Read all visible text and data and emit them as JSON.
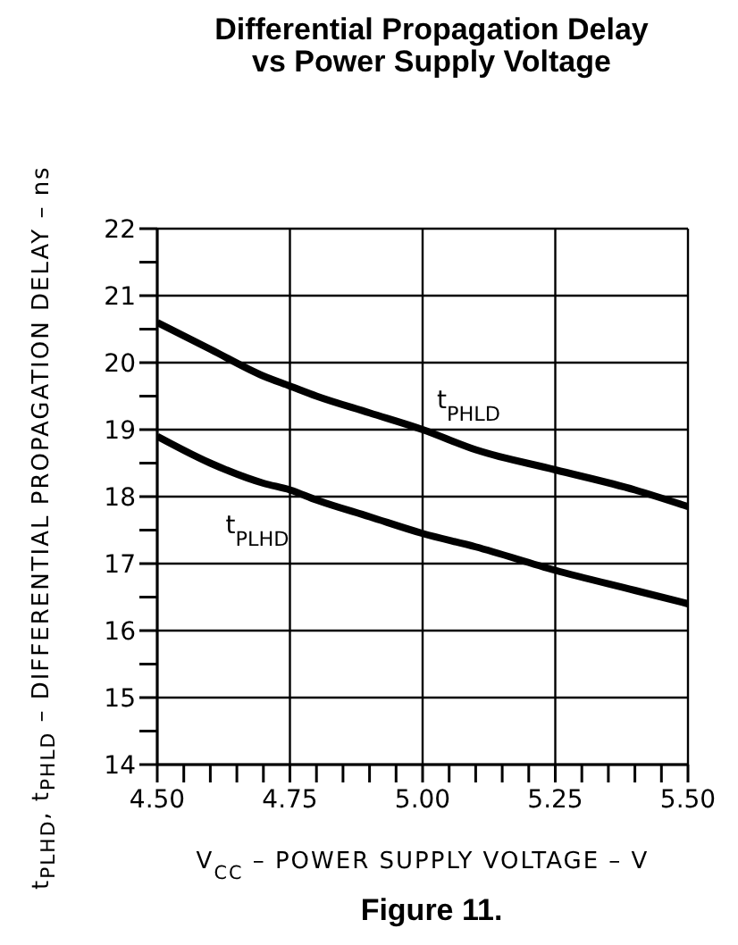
{
  "chart_data": {
    "type": "line",
    "title": "Differential Propagation Delay\nvs Power Supply Voltage",
    "xlabel": "V$_{CC}$ – POWER SUPPLY VOLTAGE – V",
    "ylabel": "t$_{PLHD}$, t$_{PHLD}$ – DIFFERENTIAL PROPAGATION DELAY – ns",
    "annotations": [
      "Figure 11."
    ],
    "x": [
      4.5,
      4.6,
      4.7,
      4.75,
      4.8,
      4.9,
      5.0,
      5.1,
      5.25,
      5.4,
      5.5
    ],
    "series": [
      {
        "name": "t$_{PHLD}$",
        "color": "#000000",
        "values": [
          20.6,
          20.2,
          19.8,
          19.65,
          19.5,
          19.25,
          19.0,
          18.7,
          18.4,
          18.1,
          17.85
        ]
      },
      {
        "name": "t$_{PLHD}$",
        "color": "#000000",
        "values": [
          18.9,
          18.5,
          18.2,
          18.1,
          17.95,
          17.7,
          17.45,
          17.25,
          16.9,
          16.6,
          16.4
        ]
      }
    ],
    "xlim": [
      4.5,
      5.5
    ],
    "xticks": [
      {
        "value": 4.5,
        "label": "4.50"
      },
      {
        "value": 4.55,
        "label": null
      },
      {
        "value": 4.6,
        "label": null
      },
      {
        "value": 4.65,
        "label": null
      },
      {
        "value": 4.7,
        "label": null
      },
      {
        "value": 4.75,
        "label": "4.75"
      },
      {
        "value": 4.8,
        "label": null
      },
      {
        "value": 4.85,
        "label": null
      },
      {
        "value": 4.9,
        "label": null
      },
      {
        "value": 4.95,
        "label": null
      },
      {
        "value": 5.0,
        "label": "5.00"
      },
      {
        "value": 5.05,
        "label": null
      },
      {
        "value": 5.1,
        "label": null
      },
      {
        "value": 5.15,
        "label": null
      },
      {
        "value": 5.2,
        "label": null
      },
      {
        "value": 5.25,
        "label": "5.25"
      },
      {
        "value": 5.3,
        "label": null
      },
      {
        "value": 5.35,
        "label": null
      },
      {
        "value": 5.4,
        "label": null
      },
      {
        "value": 5.45,
        "label": null
      },
      {
        "value": 5.5,
        "label": "5.50"
      }
    ],
    "ylim": [
      14,
      22
    ],
    "yticks": [
      14,
      {
        "value": 14.5,
        "label": null
      },
      15,
      {
        "value": 15.5,
        "label": null
      },
      16,
      {
        "value": 16.5,
        "label": null
      },
      17,
      {
        "value": 17.5,
        "label": null
      },
      18,
      {
        "value": 18.5,
        "label": null
      },
      19,
      {
        "value": 19.5,
        "label": null
      },
      20,
      {
        "value": 20.5,
        "label": null
      },
      21,
      {
        "value": 21.5,
        "label": null
      },
      22
    ],
    "grid": true,
    "legend": false,
    "marker": "none",
    "line_style": "solid"
  }
}
